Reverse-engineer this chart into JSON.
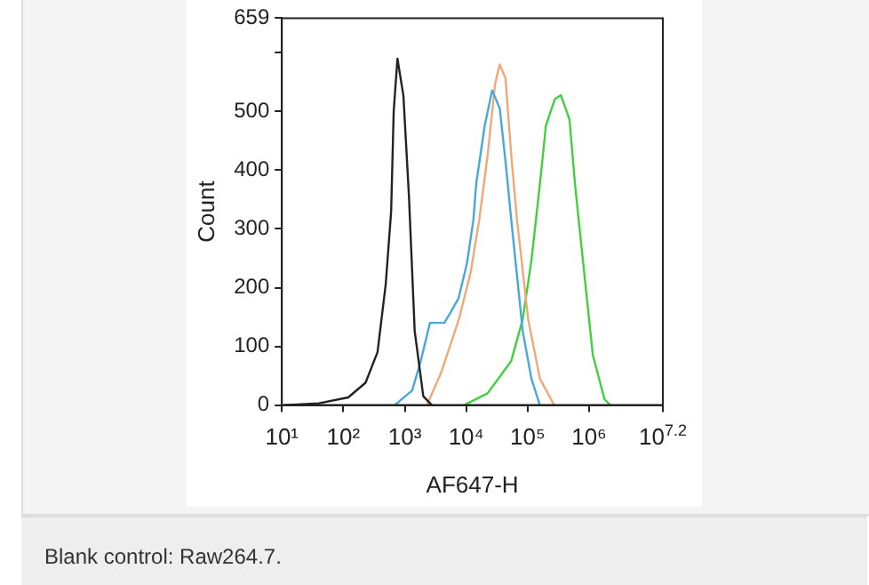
{
  "chart_data": {
    "type": "line",
    "xlabel": "AF647-H",
    "ylabel": "Count",
    "log": "x",
    "grid": false,
    "legend": false,
    "marker": "none",
    "line_style": "solid",
    "xlim": [
      10,
      15848932
    ],
    "xticks": [
      {
        "value": 10,
        "label": "10¹"
      },
      {
        "value": 100,
        "label": "10²"
      },
      {
        "value": 1000,
        "label": "10³"
      },
      {
        "value": 10000,
        "label": "10⁴"
      },
      {
        "value": 100000,
        "label": "10⁵"
      },
      {
        "value": 1000000,
        "label": "10⁶"
      },
      {
        "value": 15848932,
        "label": "10$^{7.2}$"
      }
    ],
    "ylim": [
      0,
      659
    ],
    "yticks": [
      0,
      100,
      200,
      300,
      400,
      500,
      {
        "value": 600,
        "label": null
      },
      659
    ],
    "series": [
      {
        "color": "#222222",
        "x": [
          11,
          40,
          120,
          230,
          360,
          490,
          600,
          660,
          760,
          950,
          1170,
          1450,
          2000,
          2750
        ],
        "values": [
          0,
          3,
          13,
          38,
          90,
          206,
          330,
          500,
          590,
          527,
          355,
          126,
          15,
          0
        ]
      },
      {
        "color": "#4aa8d8",
        "x": [
          690,
          1320,
          1820,
          2570,
          4400,
          5500,
          7500,
          10300,
          13100,
          14500,
          20000,
          26400,
          35000,
          43500,
          54000,
          83000,
          115000,
          158000
        ],
        "values": [
          0,
          25,
          75,
          140,
          140,
          157,
          182,
          242,
          316,
          376,
          476,
          536,
          506,
          416,
          316,
          126,
          45,
          0
        ]
      },
      {
        "color": "#f0a878",
        "x": [
          2300,
          3900,
          7600,
          11800,
          16300,
          22300,
          29500,
          35000,
          43500,
          54000,
          67000,
          102000,
          158000,
          270000
        ],
        "values": [
          0,
          55,
          146,
          226,
          316,
          426,
          547,
          580,
          557,
          426,
          316,
          146,
          45,
          0
        ]
      },
      {
        "color": "#40d040",
        "x": [
          9300,
          22300,
          54000,
          83000,
          115000,
          158000,
          198000,
          276000,
          347000,
          480000,
          590000,
          740000,
          1150000,
          1780000,
          2200000
        ],
        "values": [
          0,
          20,
          75,
          146,
          246,
          376,
          476,
          521,
          528,
          486,
          376,
          276,
          85,
          10,
          0
        ]
      }
    ],
    "annotations": [
      "Blank control: Raw264.7."
    ]
  }
}
